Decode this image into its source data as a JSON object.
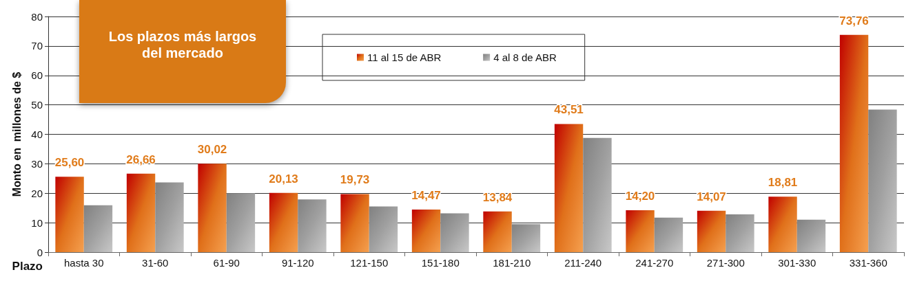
{
  "chart_data": {
    "type": "bar",
    "xlabel": "Plazo",
    "ylabel": "Monto en  millones de $",
    "categories": [
      "hasta 30",
      "31-60",
      "61-90",
      "91-120",
      "121-150",
      "151-180",
      "181-210",
      "211-240",
      "241-270",
      "271-300",
      "301-330",
      "331-360"
    ],
    "series": [
      {
        "name": "11 al 15 de ABR",
        "color": "#e0701a",
        "values": [
          25.6,
          26.66,
          30.02,
          20.13,
          19.73,
          14.47,
          13.84,
          43.51,
          14.2,
          14.07,
          18.81,
          73.76
        ],
        "value_labels": [
          "25,60",
          "26,66",
          "30,02",
          "20,13",
          "19,73",
          "14,47",
          "13,84",
          "43,51",
          "14,20",
          "14,07",
          "18,81",
          "73,76"
        ]
      },
      {
        "name": "4 al 8 de ABR",
        "color": "#a0a0a0",
        "values": [
          15.9,
          23.7,
          20.0,
          17.9,
          15.5,
          13.2,
          9.5,
          38.8,
          11.7,
          12.8,
          11.0,
          48.4
        ]
      }
    ],
    "ylim": [
      0,
      80
    ],
    "yticks": [
      0,
      10,
      20,
      30,
      40,
      50,
      60,
      70,
      80
    ],
    "grid": "y",
    "legend": "top",
    "annotations": [
      "Los plazos más largos del mercado"
    ]
  }
}
